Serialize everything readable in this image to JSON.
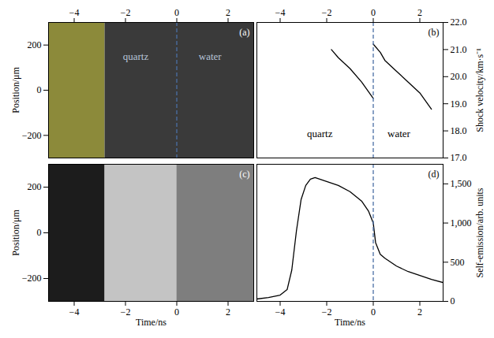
{
  "chart_data": [
    {
      "type": "image",
      "label": "(a)",
      "y_label": "Position/μm",
      "xlim": [
        -5,
        3
      ],
      "xticks": [
        -4,
        -2,
        0,
        2
      ],
      "ylim": [
        -300,
        300
      ],
      "yticks": [
        -200,
        0,
        200
      ],
      "bands": [
        {
          "x": [
            -5,
            -2.8
          ],
          "color": "#8c8a3a"
        },
        {
          "x": [
            -2.8,
            3
          ],
          "color": "#3a3a3a"
        }
      ],
      "divider_x": 0,
      "annotations": [
        {
          "text": "quartz",
          "x": -1.6,
          "y": 150,
          "color": "#b8c4d8"
        },
        {
          "text": "water",
          "x": 1.3,
          "y": 150,
          "color": "#b8c4d8"
        }
      ]
    },
    {
      "type": "line",
      "label": "(b)",
      "y_label": "Shock velocity/km·s⁻¹",
      "xlim": [
        -5,
        3
      ],
      "xticks": [
        -4,
        -2,
        0,
        2
      ],
      "ylim": [
        17,
        22
      ],
      "yticks": [
        17,
        18,
        19,
        20,
        21,
        22
      ],
      "series": [
        {
          "color": "#000000",
          "x": [
            -1.8,
            -1.5,
            -1,
            -0.5,
            0
          ],
          "values": [
            21.0,
            20.7,
            20.3,
            19.8,
            19.2
          ]
        },
        {
          "color": "#000000",
          "x": [
            0,
            0.3,
            0.5,
            1,
            1.5,
            2,
            2.5
          ],
          "values": [
            21.2,
            20.9,
            20.6,
            20.2,
            19.8,
            19.4,
            18.8
          ]
        }
      ],
      "divider_x": 0,
      "annotations": [
        {
          "text": "quartz",
          "x": -2.3,
          "y": 17.9,
          "color": "#000000"
        },
        {
          "text": "water",
          "x": 1.1,
          "y": 17.9,
          "color": "#000000"
        }
      ]
    },
    {
      "type": "image",
      "label": "(c)",
      "x_label": "Time/ns",
      "y_label": "Position/μm",
      "xlim": [
        -5,
        3
      ],
      "xticks": [
        -4,
        -2,
        0,
        2
      ],
      "ylim": [
        -300,
        300
      ],
      "yticks": [
        -200,
        0,
        200
      ],
      "bands": [
        {
          "x": [
            -5,
            -2.8
          ],
          "color": "#1c1c1c"
        },
        {
          "x": [
            -2.8,
            0
          ],
          "color": "#c4c4c4"
        },
        {
          "x": [
            0,
            3
          ],
          "color": "#7e7e7e"
        }
      ]
    },
    {
      "type": "line",
      "label": "(d)",
      "x_label": "Time/ns",
      "y_label": "Self-emission/arb. units",
      "xlim": [
        -5,
        3
      ],
      "xticks": [
        -4,
        -2,
        0,
        2
      ],
      "ylim": [
        0,
        1750
      ],
      "yticks": [
        0,
        500,
        1000,
        1500
      ],
      "series": [
        {
          "color": "#000000",
          "x": [
            -5,
            -4.5,
            -4,
            -3.7,
            -3.5,
            -3.3,
            -3.1,
            -2.9,
            -2.7,
            -2.5,
            -2.3,
            -2,
            -1.5,
            -1,
            -0.5,
            -0.2,
            0,
            0.1,
            0.3,
            0.5,
            1,
            1.5,
            2,
            2.5,
            3
          ],
          "values": [
            30,
            50,
            80,
            150,
            400,
            900,
            1300,
            1480,
            1560,
            1580,
            1560,
            1530,
            1480,
            1400,
            1280,
            1150,
            1000,
            750,
            600,
            550,
            450,
            380,
            330,
            280,
            240
          ]
        }
      ],
      "divider_x": 0
    }
  ]
}
